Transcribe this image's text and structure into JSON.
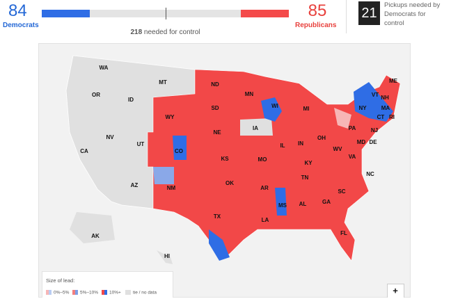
{
  "header": {
    "dem_seats": 84,
    "dem_label": "Democrats",
    "rep_seats": 85,
    "rep_label": "Republicans",
    "control_seats": 218,
    "control_text": "needed for control",
    "pickups": 21,
    "pickups_text": "Pickups needed by Democrats for control"
  },
  "map": {
    "state_labels": [
      "WA",
      "MT",
      "OR",
      "ID",
      "ND",
      "MN",
      "SD",
      "WY",
      "WI",
      "MI",
      "NE",
      "IA",
      "NV",
      "UT",
      "CO",
      "IL",
      "IN",
      "OH",
      "PA",
      "NY",
      "VT",
      "NH",
      "ME",
      "MA",
      "CT",
      "RI",
      "NJ",
      "MD",
      "DE",
      "WV",
      "VA",
      "KY",
      "MO",
      "KS",
      "CA",
      "AZ",
      "NM",
      "OK",
      "AR",
      "TN",
      "NC",
      "SC",
      "GA",
      "AL",
      "MS",
      "LA",
      "TX",
      "FL",
      "AK",
      "HI"
    ]
  },
  "legend": {
    "title": "Size of lead:",
    "items": [
      "0%–5%",
      "5%–10%",
      "10%+",
      "tie / no data"
    ]
  },
  "zoom_button": "+"
}
